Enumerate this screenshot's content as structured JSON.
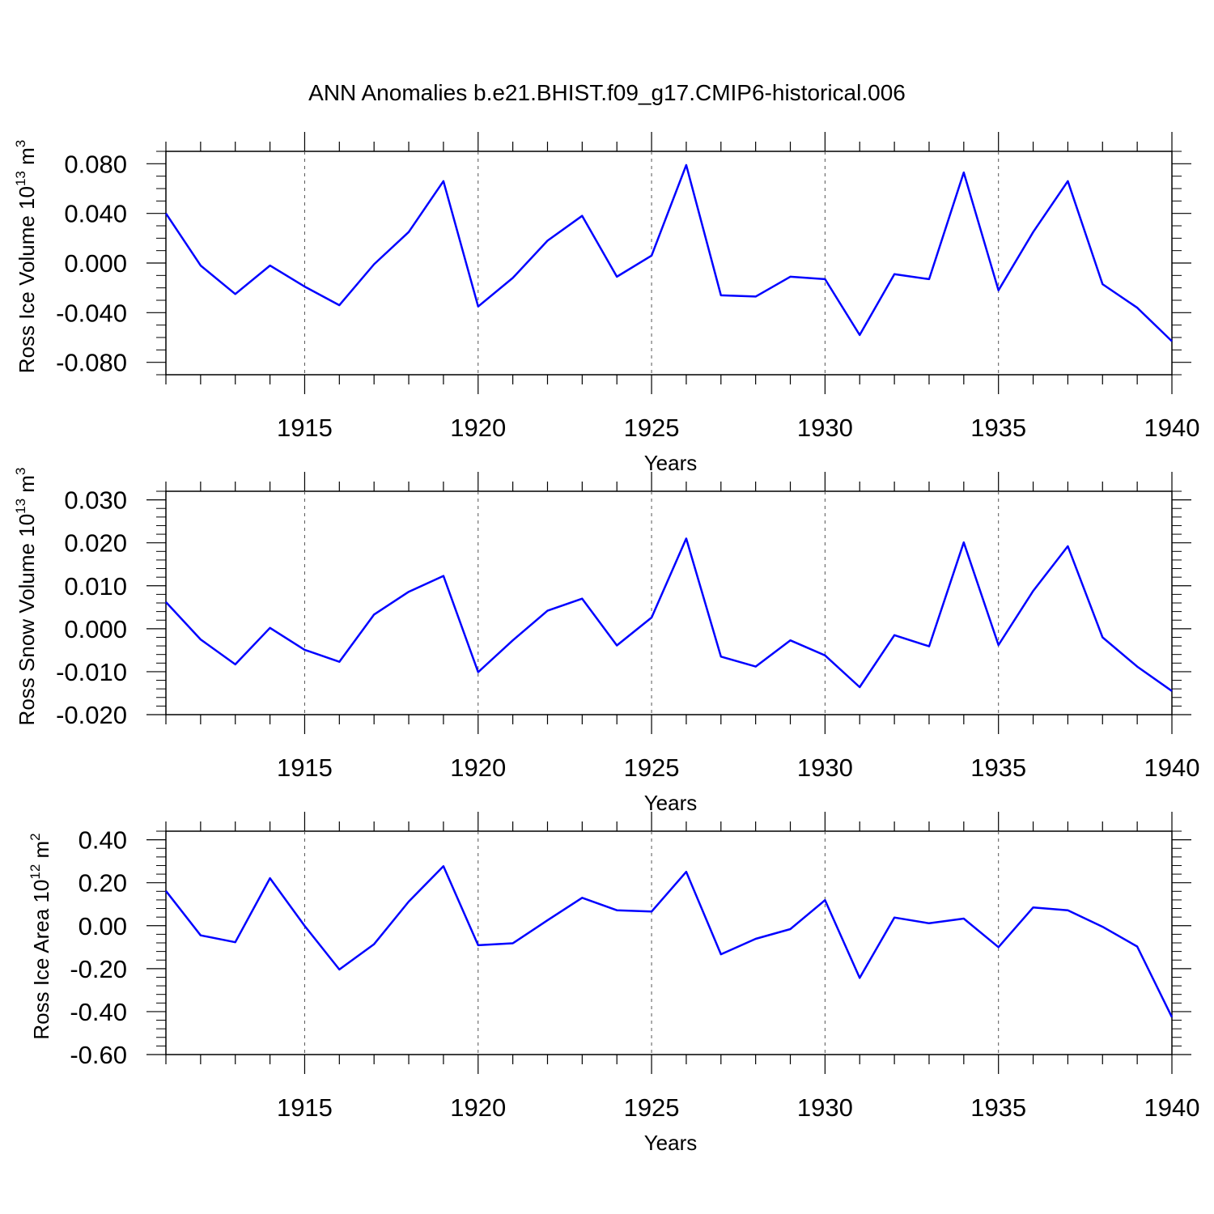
{
  "title": "ANN Anomalies b.e21.BHIST.f09_g17.CMIP6-historical.006",
  "colors": {
    "line": "#0000ff",
    "axis": "#000000",
    "grid": "#555555",
    "background": "#ffffff"
  },
  "chart_data": [
    {
      "type": "line",
      "title": "ANN Anomalies b.e21.BHIST.f09_g17.CMIP6-historical.006",
      "ylabel": {
        "main": "Ross Ice Volume 10",
        "exp": "13",
        "unit": " m",
        "unit_exp": "3"
      },
      "xlabel": "Years",
      "xlim": [
        1911,
        1940
      ],
      "ylim": [
        -0.09,
        0.09
      ],
      "xticks": [
        1915,
        1920,
        1925,
        1930,
        1935,
        1940
      ],
      "yticks": [
        0.08,
        0.04,
        0.0,
        -0.04,
        -0.08
      ],
      "ytick_labels": [
        "0.080",
        "0.040",
        "0.000",
        "-0.040",
        "-0.080"
      ],
      "minor_y_step": 0.01,
      "grid": "vertical dashed at major x ticks",
      "series": [
        {
          "name": "Ross Ice Volume",
          "x": [
            1911,
            1912,
            1913,
            1914,
            1915,
            1916,
            1917,
            1918,
            1919,
            1920,
            1921,
            1922,
            1923,
            1924,
            1925,
            1926,
            1927,
            1928,
            1929,
            1930,
            1931,
            1932,
            1933,
            1934,
            1935,
            1936,
            1937,
            1938,
            1939,
            1940
          ],
          "values": [
            0.04,
            -0.002,
            -0.025,
            -0.002,
            -0.019,
            -0.034,
            -0.001,
            0.025,
            0.066,
            -0.035,
            -0.012,
            0.018,
            0.038,
            -0.011,
            0.006,
            0.079,
            -0.026,
            -0.027,
            -0.011,
            -0.013,
            -0.058,
            -0.009,
            -0.013,
            0.073,
            -0.022,
            0.025,
            0.066,
            -0.017,
            -0.036,
            -0.063
          ]
        }
      ]
    },
    {
      "type": "line",
      "ylabel": {
        "main": "Ross Snow Volume 10",
        "exp": "13",
        "unit": " m",
        "unit_exp": "3"
      },
      "xlabel": "Years",
      "xlim": [
        1911,
        1940
      ],
      "ylim": [
        -0.02,
        0.032
      ],
      "xticks": [
        1915,
        1920,
        1925,
        1930,
        1935,
        1940
      ],
      "yticks": [
        0.03,
        0.02,
        0.01,
        0.0,
        -0.01,
        -0.02
      ],
      "ytick_labels": [
        "0.030",
        "0.020",
        "0.010",
        "0.000",
        "-0.010",
        "-0.020"
      ],
      "minor_y_step": 0.002,
      "grid": "vertical dashed at major x ticks",
      "series": [
        {
          "name": "Ross Snow Volume",
          "x": [
            1911,
            1912,
            1913,
            1914,
            1915,
            1916,
            1917,
            1918,
            1919,
            1920,
            1921,
            1922,
            1923,
            1924,
            1925,
            1926,
            1927,
            1928,
            1929,
            1930,
            1931,
            1932,
            1933,
            1934,
            1935,
            1936,
            1937,
            1938,
            1939,
            1940
          ],
          "values": [
            0.0062,
            -0.0025,
            -0.0083,
            0.0002,
            -0.0049,
            -0.0077,
            0.0033,
            0.0086,
            0.0123,
            -0.0101,
            -0.0027,
            0.0042,
            0.007,
            -0.0039,
            0.0026,
            0.021,
            -0.0065,
            -0.0088,
            -0.0027,
            -0.0062,
            -0.0136,
            -0.0015,
            -0.0041,
            0.0201,
            -0.0038,
            0.0088,
            0.0192,
            -0.002,
            -0.0088,
            -0.0145
          ]
        }
      ]
    },
    {
      "type": "line",
      "ylabel": {
        "main": "Ross Ice Area 10",
        "exp": "12",
        "unit": " m",
        "unit_exp": "2"
      },
      "xlabel": "Years",
      "xlim": [
        1911,
        1940
      ],
      "ylim": [
        -0.6,
        0.44
      ],
      "xticks": [
        1915,
        1920,
        1925,
        1930,
        1935,
        1940
      ],
      "yticks": [
        0.4,
        0.2,
        0.0,
        -0.2,
        -0.4,
        -0.6
      ],
      "ytick_labels": [
        "0.40",
        "0.20",
        "0.00",
        "-0.20",
        "-0.40",
        "-0.60"
      ],
      "minor_y_step": 0.04,
      "grid": "vertical dashed at major x ticks",
      "series": [
        {
          "name": "Ross Ice Area",
          "x": [
            1911,
            1912,
            1913,
            1914,
            1915,
            1916,
            1917,
            1918,
            1919,
            1920,
            1921,
            1922,
            1923,
            1924,
            1925,
            1926,
            1927,
            1928,
            1929,
            1930,
            1931,
            1932,
            1933,
            1934,
            1935,
            1936,
            1937,
            1938,
            1939,
            1940
          ],
          "values": [
            0.162,
            -0.045,
            -0.077,
            0.221,
            -0.001,
            -0.204,
            -0.086,
            0.112,
            0.277,
            -0.091,
            -0.082,
            0.025,
            0.13,
            0.072,
            0.066,
            0.251,
            -0.133,
            -0.061,
            -0.016,
            0.119,
            -0.243,
            0.038,
            0.011,
            0.033,
            -0.1,
            0.085,
            0.072,
            -0.005,
            -0.097,
            -0.426
          ]
        }
      ]
    }
  ]
}
